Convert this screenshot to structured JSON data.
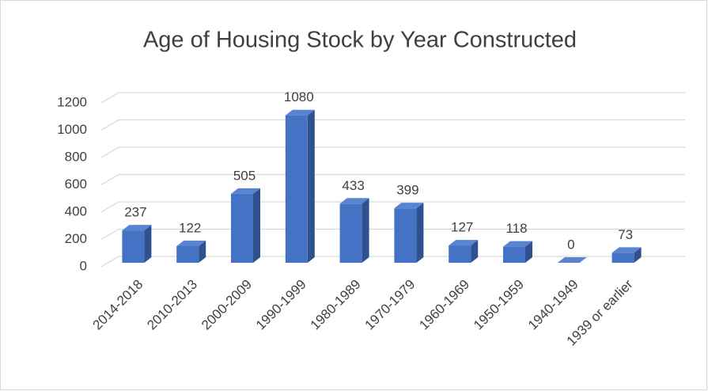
{
  "chart_data": {
    "type": "bar3d",
    "title": "Age of Housing Stock by Year Constructed",
    "categories": [
      "2014-2018",
      "2010-2013",
      "2000-2009",
      "1990-1999",
      "1980-1989",
      "1970-1979",
      "1960-1969",
      "1950-1959",
      "1940-1949",
      "1939 or earlier"
    ],
    "values": [
      237,
      122,
      505,
      1080,
      433,
      399,
      127,
      118,
      0,
      73
    ],
    "color": "#4472c4",
    "ylim": [
      0,
      1200
    ],
    "yticks": [
      0,
      200,
      400,
      600,
      800,
      1000,
      1200
    ],
    "grid": true
  }
}
